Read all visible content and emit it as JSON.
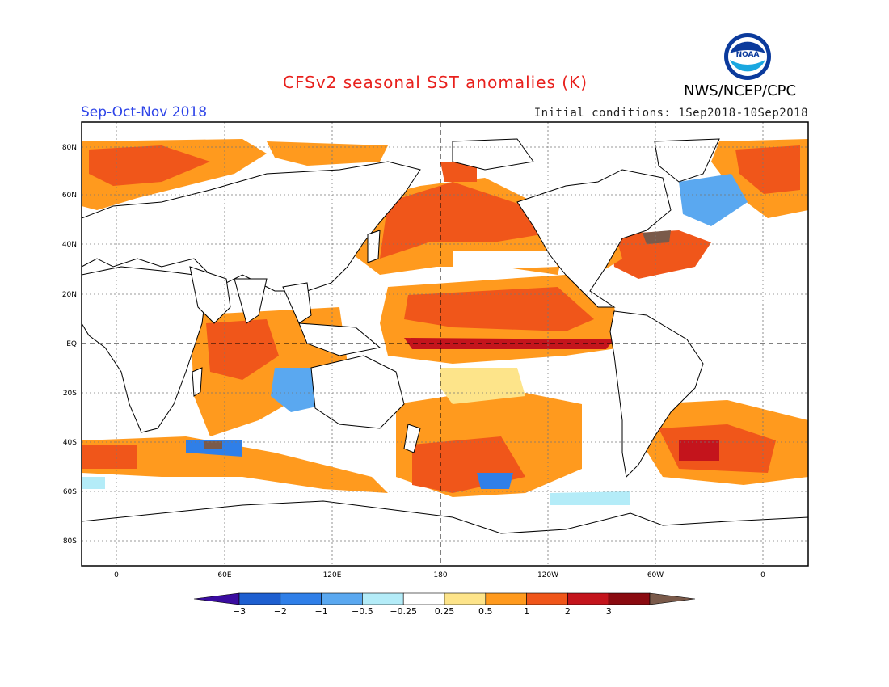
{
  "title": "CFSv2 seasonal SST anomalies (K)",
  "season": "Sep-Oct-Nov 2018",
  "initial_conditions": "Initial conditions: 1Sep2018-10Sep2018",
  "agency": "NWS/NCEP/CPC",
  "logo_text": "NOAA",
  "lat_labels": [
    "80N",
    "60N",
    "40N",
    "20N",
    "EQ",
    "20S",
    "40S",
    "60S",
    "80S"
  ],
  "lon_labels": [
    "0",
    "60E",
    "120E",
    "180",
    "120W",
    "60W",
    "0"
  ],
  "colorbar": {
    "labels": [
      "-3",
      "-2",
      "-1",
      "-0.5",
      "-0.25",
      "0.25",
      "0.5",
      "1",
      "2",
      "3"
    ],
    "colors": [
      "#3a0ca0",
      "#1e5fd0",
      "#2f7fe8",
      "#5aa8f0",
      "#b4ecf8",
      "#ffffff",
      "#fde48a",
      "#ff9a1e",
      "#f0561a",
      "#c4141c",
      "#8a0a10",
      "#7a5a4a"
    ]
  }
}
